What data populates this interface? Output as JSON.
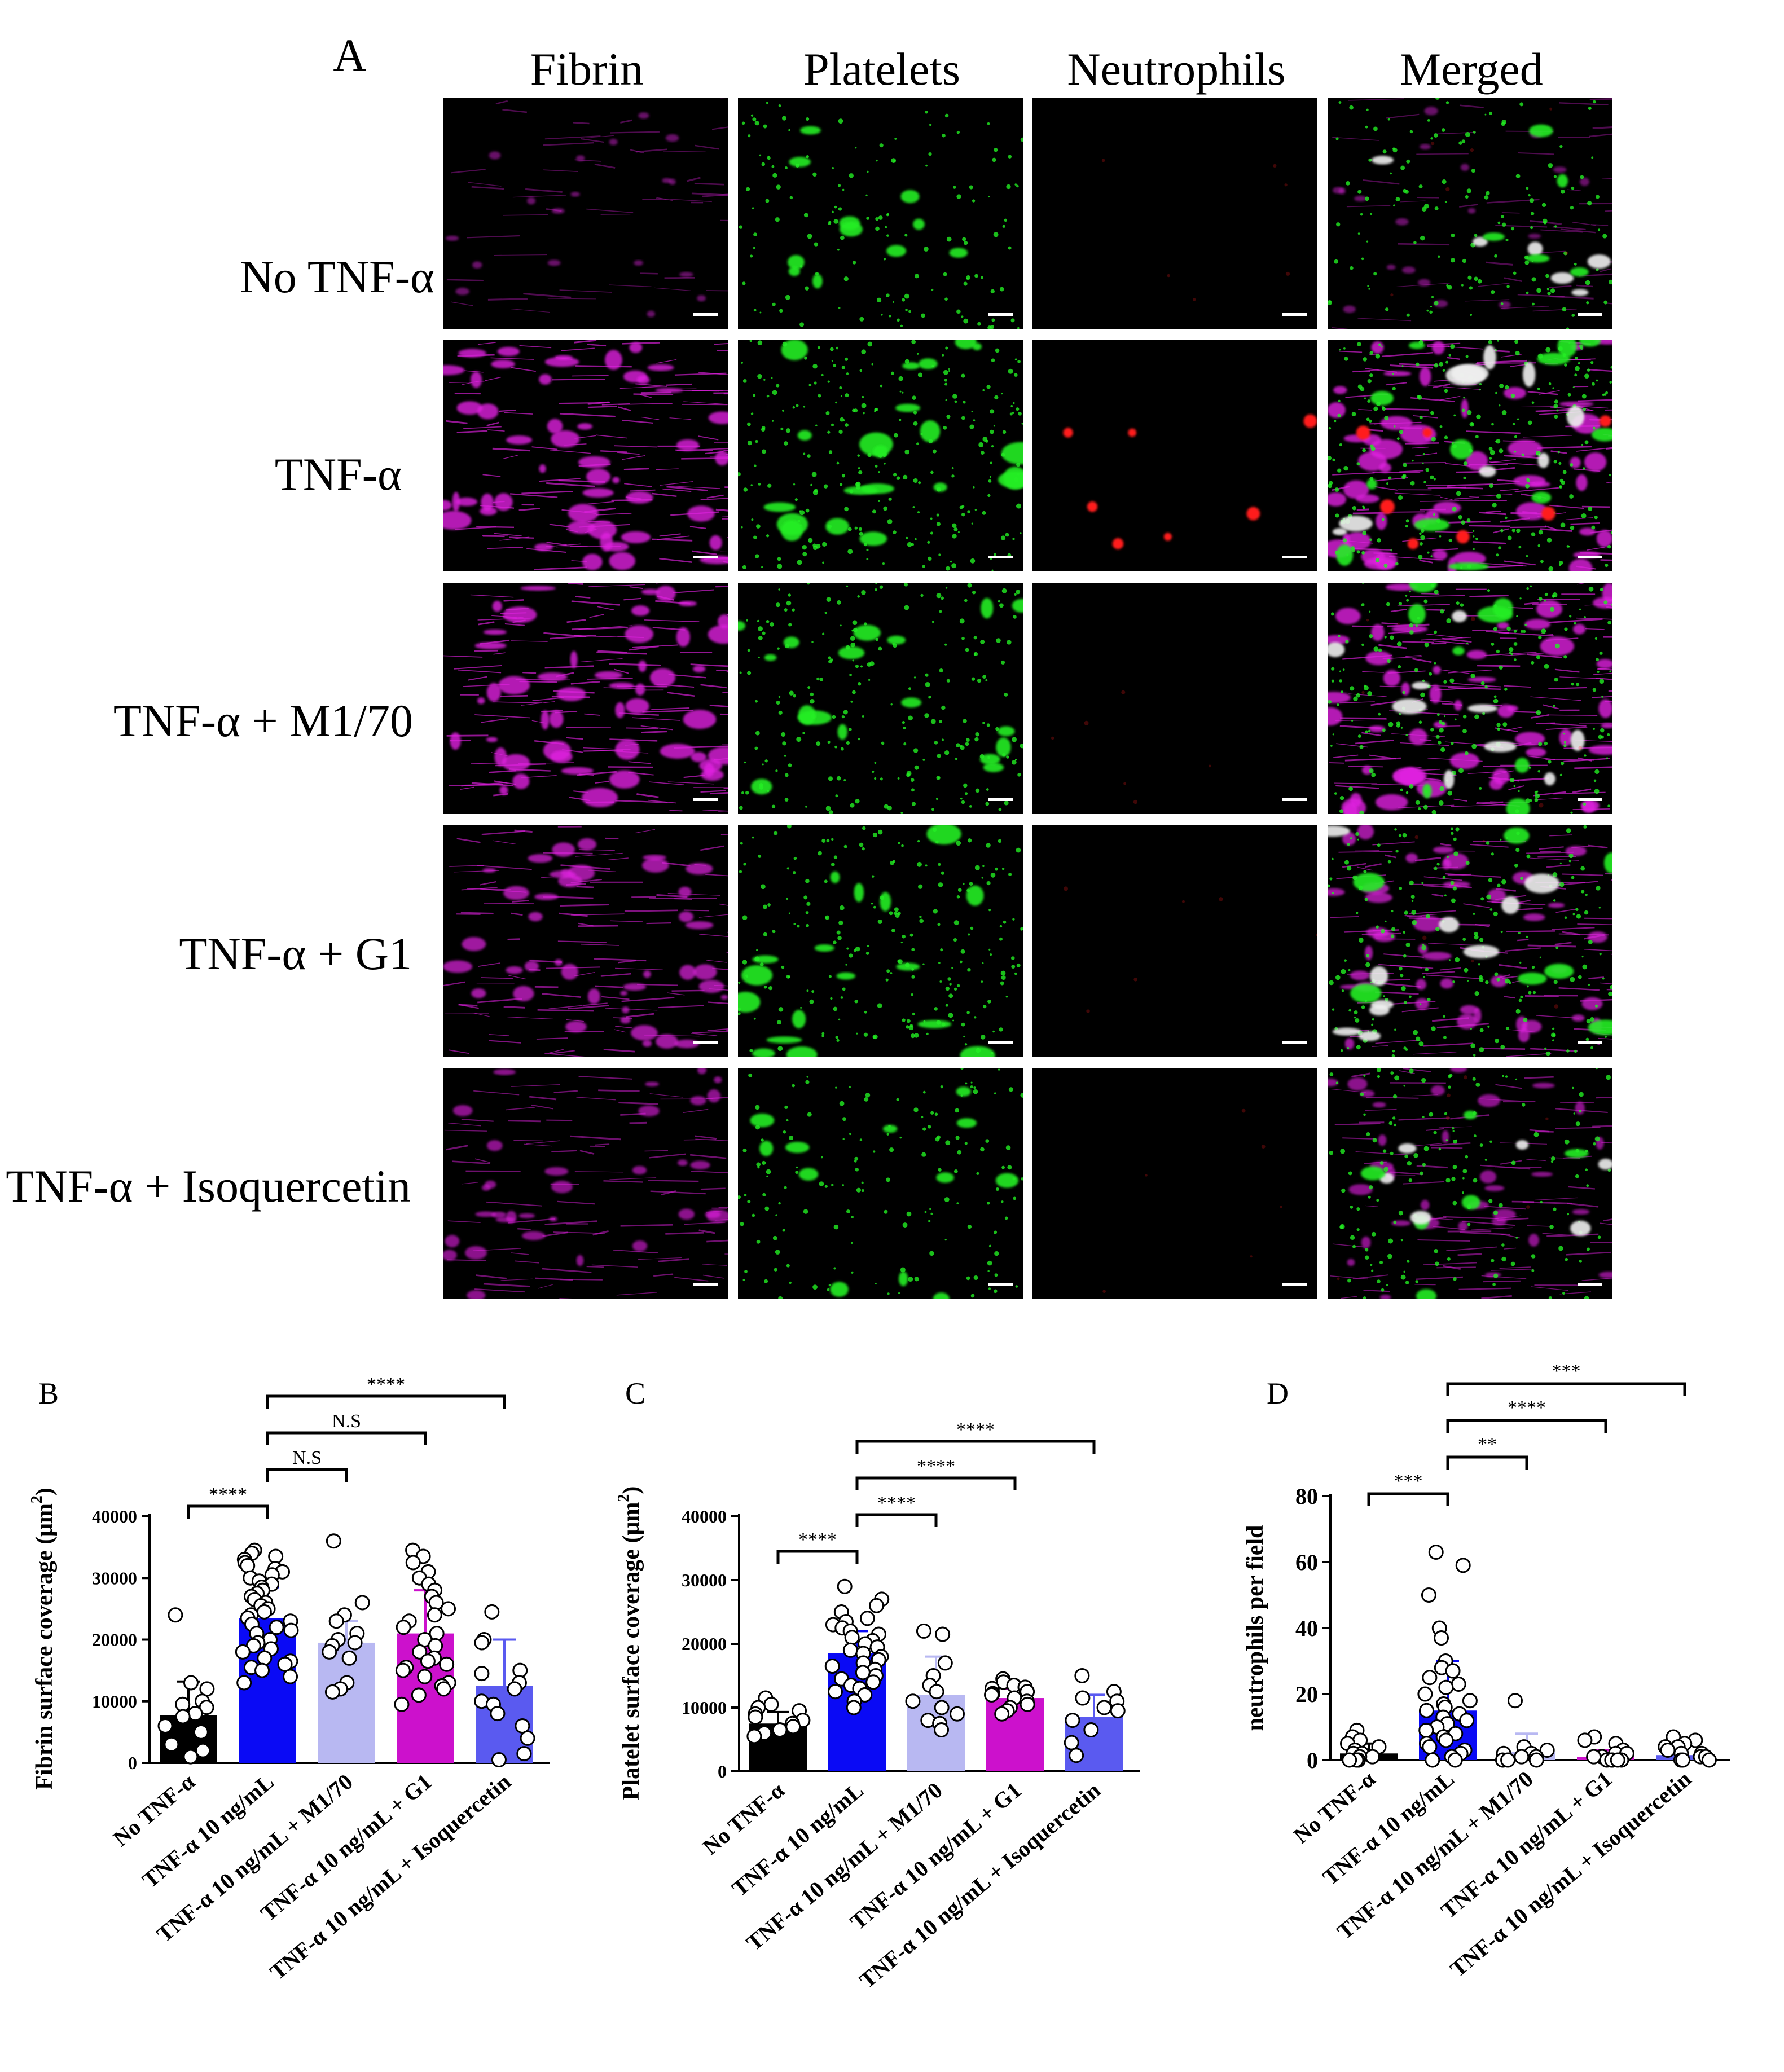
{
  "panel_a": {
    "label": "A",
    "columns": [
      "Fibrin",
      "Platelets",
      "Neutrophils",
      "Merged"
    ],
    "rows": [
      "No TNF-α",
      "TNF-α",
      "TNF-α + M1/70",
      "TNF-α + G1",
      "TNF-α + Isoquercetin"
    ],
    "channel_colors": {
      "fibrin": "#e020e0",
      "platelets": "#22ee22",
      "neutrophils": "#ff1a1a",
      "merged_overlap": "#f0f0f0"
    }
  },
  "colors": {
    "no_tnf": "#000000",
    "tnf": "#0a0af5",
    "m170": "#b8b8f2",
    "g1": "#cc11cc",
    "isoquercetin": "#5a5af0"
  },
  "chart_data": [
    {
      "panel": "B",
      "type": "bar",
      "ylabel": "Fibrin surface coverage (μm",
      "ylabel_sup": "2",
      "ylabel_tail": ")",
      "ylim": [
        0,
        40000
      ],
      "yticks": [
        0,
        10000,
        20000,
        30000,
        40000
      ],
      "categories": [
        "No TNF-α",
        "TNF-α 10 ng/mL",
        "TNF-α 10 ng/mL + M1/70",
        "TNF-α 10 ng/mL + G1",
        "TNF-α 10 ng/mL + Isoquercetin"
      ],
      "values": [
        7700,
        23500,
        19500,
        21000,
        12500
      ],
      "errors": [
        5500,
        5000,
        3500,
        7000,
        7500
      ],
      "bar_colors": [
        "#000000",
        "#0a0af5",
        "#b8b8f2",
        "#cc11cc",
        "#5a5af0"
      ],
      "points": [
        [
          24000,
          13000,
          12000,
          10000,
          9500,
          9000,
          8000,
          7500,
          6000,
          5000,
          3000,
          2000,
          1000
        ],
        [
          34500,
          34000,
          33500,
          33000,
          32500,
          32000,
          31500,
          31000,
          30500,
          30000,
          29500,
          29000,
          28500,
          28000,
          27500,
          27000,
          26500,
          26000,
          25500,
          25000,
          24500,
          24000,
          23500,
          23000,
          22500,
          22000,
          21500,
          21000,
          20000,
          19500,
          19000,
          18500,
          18000,
          17000,
          16500,
          16000,
          15500,
          15000,
          14000,
          13000
        ],
        [
          36000,
          26000,
          24000,
          23000,
          21000,
          20000,
          19500,
          19000,
          18000,
          17000,
          13000,
          12000,
          11500
        ],
        [
          34500,
          33500,
          32500,
          31000,
          30000,
          29000,
          28000,
          27000,
          26000,
          25000,
          24000,
          23000,
          22000,
          21000,
          20000,
          19000,
          18000,
          17000,
          16500,
          16000,
          15500,
          15000,
          14000,
          13000,
          12500,
          12000,
          11000,
          9500
        ],
        [
          24500,
          20000,
          19500,
          15000,
          14500,
          13000,
          12000,
          10000,
          9500,
          8000,
          6000,
          4000,
          1500,
          500
        ]
      ],
      "comparisons": [
        {
          "from": 0,
          "to": 1,
          "label": "****"
        },
        {
          "from": 1,
          "to": 2,
          "label": "N.S"
        },
        {
          "from": 1,
          "to": 3,
          "label": "N.S"
        },
        {
          "from": 1,
          "to": 4,
          "label": "****"
        }
      ]
    },
    {
      "panel": "C",
      "type": "bar",
      "ylabel": "Platelet surface coverage (μm",
      "ylabel_sup": "2",
      "ylabel_tail": ")",
      "ylim": [
        0,
        40000
      ],
      "yticks": [
        0,
        10000,
        20000,
        30000,
        40000
      ],
      "categories": [
        "No TNF-α",
        "TNF-α 10 ng/mL",
        "TNF-α 10 ng/mL + M1/70",
        "TNF-α 10 ng/mL + G1",
        "TNF-α 10 ng/mL + Isoquercetin"
      ],
      "values": [
        7500,
        18500,
        12000,
        11500,
        8500
      ],
      "errors": [
        1800,
        3500,
        6000,
        1500,
        3500
      ],
      "bar_colors": [
        "#000000",
        "#0a0af5",
        "#b8b8f2",
        "#cc11cc",
        "#5a5af0"
      ],
      "points": [
        [
          11500,
          10500,
          10000,
          9500,
          9000,
          8500,
          8000,
          7500,
          7000,
          6500,
          6000,
          5500
        ],
        [
          29000,
          27000,
          26000,
          25000,
          24000,
          23500,
          23000,
          22500,
          22000,
          21500,
          21000,
          20500,
          20000,
          19500,
          19000,
          18500,
          18000,
          17500,
          17000,
          16500,
          16000,
          15500,
          15000,
          14500,
          14000,
          13500,
          13000,
          12500,
          12000,
          11000,
          10000
        ],
        [
          22000,
          21500,
          17000,
          15000,
          13500,
          12500,
          11000,
          10000,
          9000,
          8000,
          7500,
          6500
        ],
        [
          14500,
          14000,
          13500,
          13200,
          13000,
          12500,
          12200,
          12000,
          11500,
          11000,
          10500,
          10000,
          9500,
          9000
        ],
        [
          15000,
          12500,
          11500,
          11000,
          10000,
          9500,
          8000,
          6500,
          4500,
          2500
        ]
      ],
      "comparisons": [
        {
          "from": 0,
          "to": 1,
          "label": "****"
        },
        {
          "from": 1,
          "to": 2,
          "label": "****"
        },
        {
          "from": 1,
          "to": 3,
          "label": "****"
        },
        {
          "from": 1,
          "to": 4,
          "label": "****"
        }
      ]
    },
    {
      "panel": "D",
      "type": "bar",
      "ylabel": "neutrophils per field",
      "ylabel_sup": "",
      "ylabel_tail": "",
      "ylim": [
        0,
        80
      ],
      "yticks": [
        0,
        20,
        40,
        60,
        80
      ],
      "categories": [
        "No TNF-α",
        "TNF-α 10 ng/mL",
        "TNF-α 10 ng/mL + M1/70",
        "TNF-α 10 ng/mL + G1",
        "TNF-α 10 ng/mL + Isoquercetin"
      ],
      "values": [
        2,
        15,
        2.5,
        1,
        1.5
      ],
      "errors": [
        3,
        15,
        5.5,
        2,
        3.5
      ],
      "bar_colors": [
        "#000000",
        "#0a0af5",
        "#b8b8f2",
        "#cc11cc",
        "#5a5af0"
      ],
      "points": [
        [
          9,
          7,
          6,
          5,
          4,
          3,
          2,
          2,
          1,
          1,
          0,
          0,
          0
        ],
        [
          63,
          59,
          50,
          40,
          37,
          30,
          28,
          27,
          25,
          23,
          22,
          20,
          18,
          17,
          16,
          15,
          14,
          13,
          12,
          11,
          10,
          9,
          8,
          7,
          6,
          5,
          4,
          3,
          2,
          1,
          0,
          0
        ],
        [
          18,
          4,
          3,
          2,
          2,
          1,
          1,
          0,
          0,
          0
        ],
        [
          7,
          6,
          5,
          3,
          2,
          2,
          1,
          1,
          1,
          0,
          0,
          0,
          0,
          0
        ],
        [
          7,
          6,
          5,
          4,
          4,
          3,
          2,
          2,
          1,
          1,
          0,
          0,
          0
        ]
      ],
      "comparisons": [
        {
          "from": 0,
          "to": 1,
          "label": "***"
        },
        {
          "from": 1,
          "to": 2,
          "label": "**"
        },
        {
          "from": 1,
          "to": 3,
          "label": "****"
        },
        {
          "from": 1,
          "to": 4,
          "label": "***"
        }
      ]
    }
  ]
}
